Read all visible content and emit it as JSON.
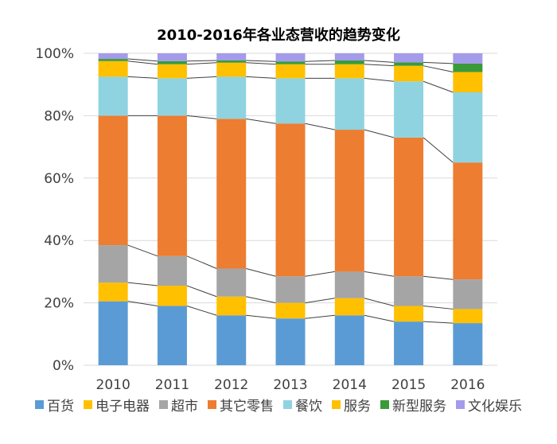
{
  "chart_data": {
    "type": "bar",
    "stacked": true,
    "percent_stacked": true,
    "title": "2010-2016年各业态营收的趋势变化",
    "xlabel": "",
    "ylabel": "",
    "ylim": [
      0,
      100
    ],
    "grid": true,
    "legend_position": "bottom",
    "series_lines": true,
    "categories": [
      "2010",
      "2011",
      "2012",
      "2013",
      "2014",
      "2015",
      "2016"
    ],
    "y_ticks": [
      "0%",
      "20%",
      "40%",
      "60%",
      "80%",
      "100%"
    ],
    "series": [
      {
        "name": "百货",
        "color": "#5B9BD5",
        "values": [
          20.5,
          19.0,
          16.0,
          15.0,
          16.0,
          14.0,
          13.5
        ]
      },
      {
        "name": "电子电器",
        "color": "#FFC000",
        "values": [
          6.0,
          6.5,
          6.0,
          5.0,
          5.5,
          5.0,
          4.5
        ]
      },
      {
        "name": "超市",
        "color": "#A5A5A5",
        "values": [
          12.0,
          9.5,
          9.0,
          8.5,
          8.5,
          9.5,
          9.5
        ]
      },
      {
        "name": "其它零售",
        "color": "#ED7D31",
        "values": [
          41.5,
          45.0,
          48.0,
          49.0,
          45.5,
          44.5,
          37.5
        ]
      },
      {
        "name": "餐饮",
        "color": "#8FD3E0",
        "values": [
          12.5,
          12.0,
          13.5,
          14.5,
          16.5,
          18.0,
          22.5
        ]
      },
      {
        "name": "服务",
        "color": "#FFC000",
        "values": [
          5.0,
          4.5,
          4.5,
          4.5,
          4.5,
          5.0,
          6.5
        ]
      },
      {
        "name": "新型服务",
        "color": "#3A9A3A",
        "values": [
          0.7,
          1.0,
          0.7,
          0.9,
          1.2,
          1.1,
          2.7
        ]
      },
      {
        "name": "文化娱乐",
        "color": "#A49BEA",
        "values": [
          1.8,
          2.5,
          2.3,
          2.6,
          2.3,
          2.9,
          3.3
        ]
      }
    ]
  }
}
